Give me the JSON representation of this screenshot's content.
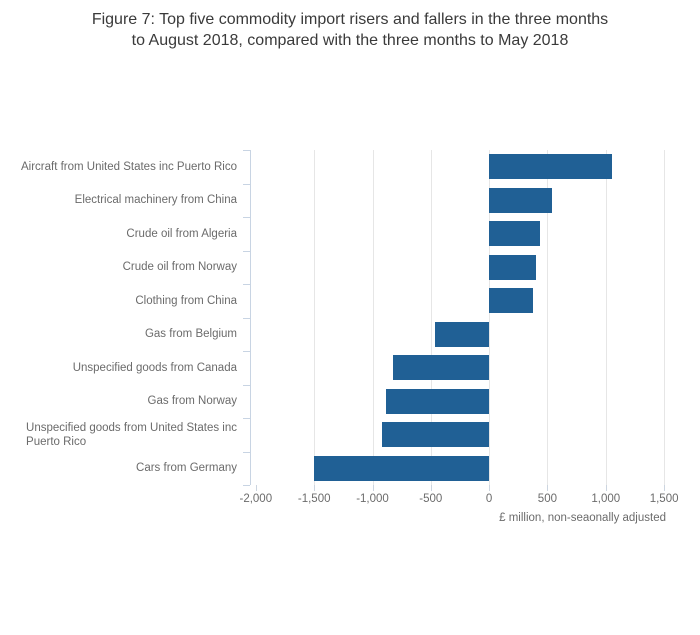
{
  "title": {
    "line1": "Figure 7: Top five commodity import risers and fallers in the three months",
    "line2": "to August 2018, compared with the three months to May 2018"
  },
  "chart_data": {
    "type": "bar",
    "orientation": "horizontal",
    "title": "Figure 7: Top five commodity import risers and fallers in the three months to August 2018, compared with the three months to May 2018",
    "xlabel": "£ million, non-seaonally adjusted",
    "categories": [
      "Aircraft from United States inc Puerto Rico",
      "Electrical machinery from China",
      "Crude oil from Algeria",
      "Crude oil from Norway",
      "Clothing from China",
      "Gas from Belgium",
      "Unspecified goods from Canada",
      "Gas from Norway",
      "Unspecified goods from United States inc\nPuerto Rico",
      "Cars from Germany"
    ],
    "values": [
      1050,
      540,
      435,
      400,
      375,
      -465,
      -825,
      -885,
      -915,
      -1500
    ],
    "xlim": [
      -2050,
      1525
    ],
    "tick_values": [
      -2000,
      -1500,
      -1000,
      -500,
      0,
      500,
      1000,
      1500
    ],
    "tick_labels": [
      "-2,000",
      "-1,500",
      "-1,000",
      "-500",
      "0",
      "500",
      "1,000",
      "1,500"
    ],
    "gridline_values": [
      -1500,
      -1000,
      -500,
      0,
      500,
      1000,
      1500
    ],
    "grid": true,
    "legend": "none",
    "colors": {
      "bar": "#206095",
      "gridline": "#e6e6e6",
      "axis": "#c8d4e3",
      "label_text": "#6b6b6b",
      "title_text": "#3a3a3a"
    }
  }
}
